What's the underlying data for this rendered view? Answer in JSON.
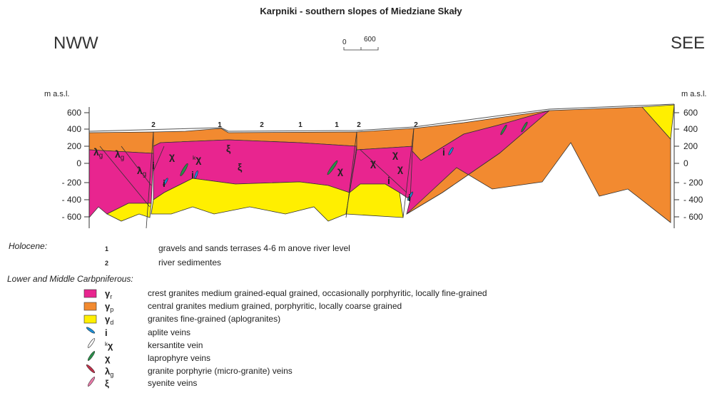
{
  "title": "Karpniki - southern slopes of Miedziane Skały",
  "left_label": "NWW",
  "right_label": "SEE",
  "scale": {
    "start": "0",
    "end": "600"
  },
  "axis_unit": "m a.s.l.",
  "axis_ticks": [
    "600",
    "400",
    "200",
    "0",
    "- 200",
    "- 400",
    "- 600"
  ],
  "section_labels": [
    "2",
    "1",
    "2",
    "1",
    "1",
    "2",
    "2"
  ],
  "map_labels": [
    {
      "symbol": "λ",
      "sub": "g"
    },
    {
      "symbol": "λ",
      "sub": "g"
    },
    {
      "symbol": "λ",
      "sub": "g"
    },
    {
      "symbol": "i"
    },
    {
      "symbol": "χ"
    },
    {
      "sup": "k",
      "symbol": "χ"
    },
    {
      "symbol": "ξ"
    },
    {
      "symbol": "ξ"
    },
    {
      "symbol": "i"
    },
    {
      "symbol": "i"
    },
    {
      "symbol": "χ"
    },
    {
      "symbol": "χ"
    },
    {
      "symbol": "χ"
    },
    {
      "symbol": "χ"
    },
    {
      "symbol": "i"
    },
    {
      "symbol": "i"
    },
    {
      "symbol": "i"
    }
  ],
  "legend": {
    "holocene": {
      "heading": "Holocene:",
      "items": [
        {
          "symbol": "1",
          "text": "gravels and sands terrases 4-6 m anove river level"
        },
        {
          "symbol": "2",
          "text": "river sedimentes"
        }
      ]
    },
    "carboniferous": {
      "heading": "Lower and Middle Carbpniferous:",
      "items": [
        {
          "symbol": "γ",
          "sub": "r",
          "text": "crest granites medium grained-equal grained, occasionally porphyritic, locally fine-grained"
        },
        {
          "symbol": "γ",
          "sub": "p",
          "text": "central granites medium grained, porphyritic, locally coarse grained"
        },
        {
          "symbol": "γ",
          "sub": "d",
          "text": "granites fine-grained (aplogranites)"
        },
        {
          "symbol": "i",
          "text": "aplite veins"
        },
        {
          "sup": "k",
          "symbol": "χ",
          "text": "kersantite vein"
        },
        {
          "symbol": "χ",
          "text": "laprophyre veins"
        },
        {
          "symbol": "λ",
          "sub": "g",
          "text": "granite porphyrie (micro-granite) veins"
        },
        {
          "symbol": "ξ",
          "text": "syenite veins"
        }
      ]
    }
  }
}
